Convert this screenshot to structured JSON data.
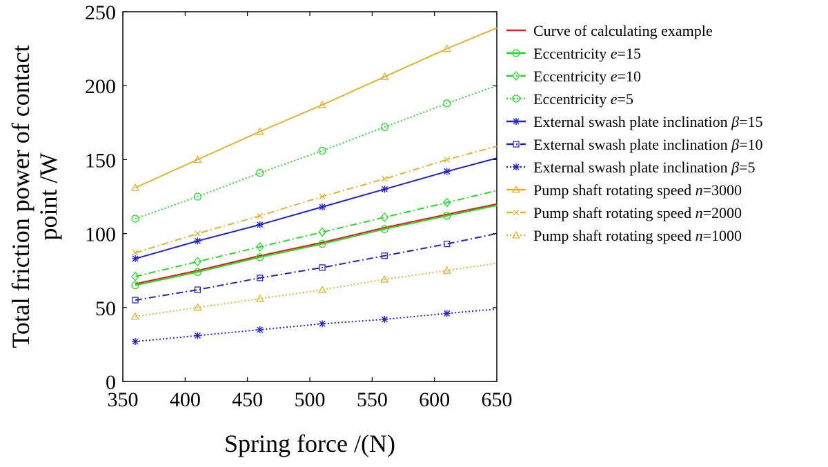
{
  "chart_data": {
    "type": "line",
    "xlabel": "Spring force /(N)",
    "ylabel_lines": [
      "Total friction power of contact",
      "point /W"
    ],
    "xlim": [
      350,
      650
    ],
    "ylim": [
      0,
      250
    ],
    "xticks": [
      350,
      400,
      450,
      500,
      550,
      600,
      650
    ],
    "yticks": [
      0,
      50,
      100,
      150,
      200,
      250
    ],
    "grid": false,
    "legend_position": "right",
    "x": [
      360,
      410,
      460,
      510,
      560,
      610,
      650
    ],
    "series": [
      {
        "name": "Curve of calculating example",
        "name_parts": [
          "Curve of calculating example"
        ],
        "color": "#e41a1c",
        "dash": "solid",
        "marker": "none",
        "values": [
          66,
          75,
          85,
          94,
          104,
          113,
          120
        ]
      },
      {
        "name": "Eccentricity e=15",
        "name_parts": [
          "Eccentricity ",
          "e",
          "=15"
        ],
        "color": "#22dd22",
        "dash": "solid",
        "marker": "circle",
        "values": [
          65,
          74,
          84,
          93,
          103,
          112,
          119
        ]
      },
      {
        "name": "Eccentricity e=10",
        "name_parts": [
          "Eccentricity ",
          "e",
          "=10"
        ],
        "color": "#22dd22",
        "dash": "dashdot",
        "marker": "diamond",
        "values": [
          71,
          81,
          91,
          101,
          111,
          121,
          129
        ]
      },
      {
        "name": "Eccentricity e=5",
        "name_parts": [
          "Eccentricity ",
          "e",
          "=5"
        ],
        "color": "#22dd22",
        "dash": "dotted",
        "marker": "circle",
        "values": [
          110,
          125,
          141,
          156,
          172,
          188,
          200
        ]
      },
      {
        "name": "External swash plate inclination β=15",
        "name_parts": [
          "External swash plate inclination ",
          "β",
          "=15"
        ],
        "color": "#2222cc",
        "dash": "solid",
        "marker": "asterisk",
        "values": [
          83,
          95,
          106,
          118,
          130,
          142,
          151
        ]
      },
      {
        "name": "External swash plate inclination β=10",
        "name_parts": [
          "External swash plate inclination ",
          "β",
          "=10"
        ],
        "color": "#2222cc",
        "dash": "dashdot",
        "marker": "square",
        "values": [
          55,
          62,
          70,
          77,
          85,
          93,
          100
        ]
      },
      {
        "name": "External swash plate inclination β=5",
        "name_parts": [
          "External swash plate inclination ",
          "β",
          "=5"
        ],
        "color": "#2222cc",
        "dash": "dotted",
        "marker": "asterisk",
        "values": [
          27,
          31,
          35,
          39,
          42,
          46,
          49
        ]
      },
      {
        "name": "Pump shaft rotating speed n=3000",
        "name_parts": [
          "Pump shaft rotating speed  ",
          "n",
          "=3000"
        ],
        "color": "#e8b030",
        "dash": "solid",
        "marker": "triangle",
        "values": [
          131,
          150,
          169,
          187,
          206,
          225,
          239
        ]
      },
      {
        "name": "Pump shaft rotating speed n=2000",
        "name_parts": [
          "Pump shaft rotating speed  ",
          "n",
          "=2000"
        ],
        "color": "#e8b030",
        "dash": "dashdot",
        "marker": "cross",
        "values": [
          87,
          100,
          112,
          125,
          137,
          150,
          159
        ]
      },
      {
        "name": "Pump shaft rotating speed n=1000",
        "name_parts": [
          "Pump shaft rotating speed  ",
          "n",
          "=1000"
        ],
        "color": "#e8b030",
        "dash": "dotted",
        "marker": "triangle",
        "values": [
          44,
          50,
          56,
          62,
          69,
          75,
          80
        ]
      }
    ]
  }
}
